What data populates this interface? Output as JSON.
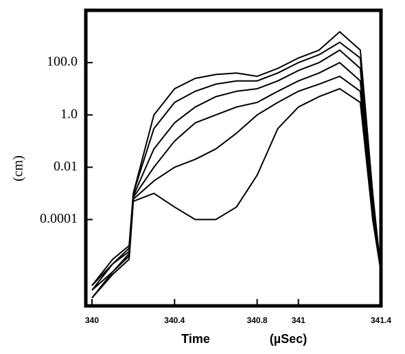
{
  "chart_data": {
    "type": "line",
    "x_label": "Time",
    "x_unit": "(µSec)",
    "y_label": "(cm)",
    "log_y": true,
    "x": [
      340.0,
      340.1,
      340.18,
      340.2,
      340.3,
      340.4,
      340.5,
      340.6,
      340.7,
      340.8,
      340.9,
      341.0,
      341.1,
      341.2,
      341.3,
      341.36,
      341.4
    ],
    "series": [
      {
        "color": "#000000",
        "values": [
          3e-07,
          3e-06,
          1e-05,
          0.001,
          1,
          10,
          25,
          35,
          40,
          30,
          60,
          150,
          300,
          1500,
          300,
          0.001,
          1e-06
        ]
      },
      {
        "color": "#000000",
        "values": [
          3e-07,
          2e-06,
          8e-06,
          0.001,
          0.3,
          3,
          8,
          15,
          20,
          20,
          40,
          100,
          200,
          600,
          150,
          0.0005,
          1e-06
        ]
      },
      {
        "color": "#000000",
        "values": [
          2e-07,
          2e-06,
          6e-06,
          0.0008,
          0.05,
          0.5,
          2,
          5,
          8,
          10,
          20,
          50,
          100,
          300,
          60,
          0.0003,
          1e-06
        ]
      },
      {
        "color": "#000000",
        "values": [
          2e-07,
          1e-06,
          5e-06,
          0.0007,
          0.01,
          0.1,
          0.5,
          1,
          2,
          3,
          8,
          20,
          40,
          100,
          20,
          0.0002,
          1e-06
        ]
      },
      {
        "color": "#000000",
        "values": [
          1e-07,
          1e-06,
          4e-06,
          0.0006,
          0.003,
          0.01,
          0.02,
          0.05,
          0.2,
          1,
          3,
          8,
          15,
          30,
          8,
          0.0001,
          1e-06
        ]
      },
      {
        "color": "#000000",
        "values": [
          1e-07,
          8e-07,
          3e-06,
          0.0005,
          0.001,
          0.0003,
          0.0001,
          0.0001,
          0.0003,
          0.005,
          0.3,
          2,
          5,
          10,
          3,
          0.0001,
          1e-06
        ]
      }
    ],
    "xlim": [
      339.97,
      341.4
    ],
    "xticks": [
      340,
      340.4,
      340.8,
      341,
      341.4
    ],
    "ylim": [
      5e-08,
      10000
    ],
    "yticks": [
      {
        "value": 100,
        "label": "100.0"
      },
      {
        "value": 1,
        "label": "1.0"
      },
      {
        "value": 0.01,
        "label": "0.01"
      },
      {
        "value": 0.0001,
        "label": "0.0001"
      }
    ]
  }
}
